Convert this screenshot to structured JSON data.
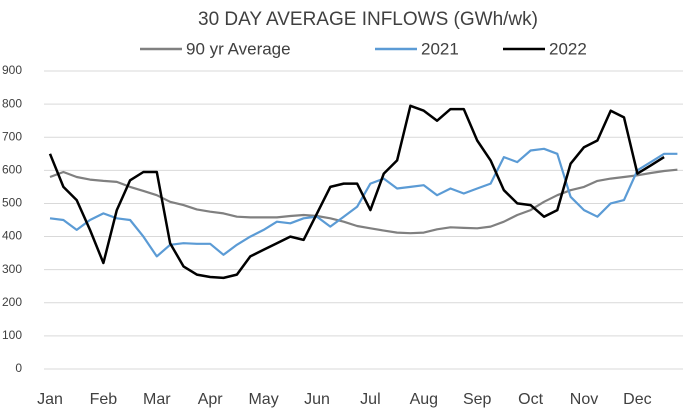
{
  "chart_data": {
    "type": "line",
    "title": "30 DAY AVERAGE INFLOWS (GWh/wk)",
    "categories": [
      "Jan",
      null,
      null,
      null,
      "Feb",
      null,
      null,
      null,
      "Mar",
      null,
      null,
      null,
      "Apr",
      null,
      null,
      null,
      "May",
      null,
      null,
      null,
      "Jun",
      null,
      null,
      null,
      "Jul",
      null,
      null,
      null,
      "Aug",
      null,
      null,
      null,
      "Sep",
      null,
      null,
      null,
      "Oct",
      null,
      null,
      null,
      "Nov",
      null,
      null,
      null,
      "Dec",
      null,
      null,
      null
    ],
    "series": [
      {
        "name": "90 yr Average",
        "color": "#808080",
        "values": [
          580,
          595,
          580,
          572,
          568,
          565,
          550,
          538,
          525,
          505,
          495,
          482,
          475,
          470,
          460,
          458,
          458,
          458,
          462,
          465,
          462,
          455,
          445,
          432,
          425,
          418,
          412,
          410,
          412,
          422,
          428,
          426,
          425,
          430,
          445,
          465,
          480,
          505,
          525,
          540,
          550,
          568,
          575,
          580,
          585,
          592,
          598,
          602
        ]
      },
      {
        "name": "2021",
        "color": "#5b9bd5",
        "values": [
          455,
          450,
          420,
          450,
          470,
          455,
          450,
          400,
          340,
          375,
          380,
          378,
          378,
          345,
          375,
          400,
          420,
          445,
          440,
          455,
          460,
          430,
          460,
          490,
          560,
          575,
          545,
          550,
          555,
          525,
          545,
          530,
          545,
          560,
          640,
          625,
          660,
          665,
          650,
          520,
          480,
          460,
          500,
          510,
          600,
          625,
          650,
          650
        ]
      },
      {
        "name": "2022",
        "color": "#000000",
        "values": [
          650,
          550,
          510,
          420,
          320,
          480,
          570,
          595,
          595,
          380,
          310,
          285,
          278,
          275,
          285,
          340,
          360,
          380,
          400,
          390,
          470,
          550,
          560,
          560,
          480,
          590,
          630,
          795,
          780,
          750,
          785,
          785,
          690,
          630,
          540,
          500,
          495,
          460,
          480,
          620,
          670,
          690,
          780,
          760,
          590,
          615,
          640,
          null
        ]
      }
    ],
    "ylim": [
      0,
      900
    ],
    "yticks": [
      0,
      100,
      200,
      300,
      400,
      500,
      600,
      700,
      800,
      900
    ],
    "grid": true,
    "legend": "top"
  }
}
